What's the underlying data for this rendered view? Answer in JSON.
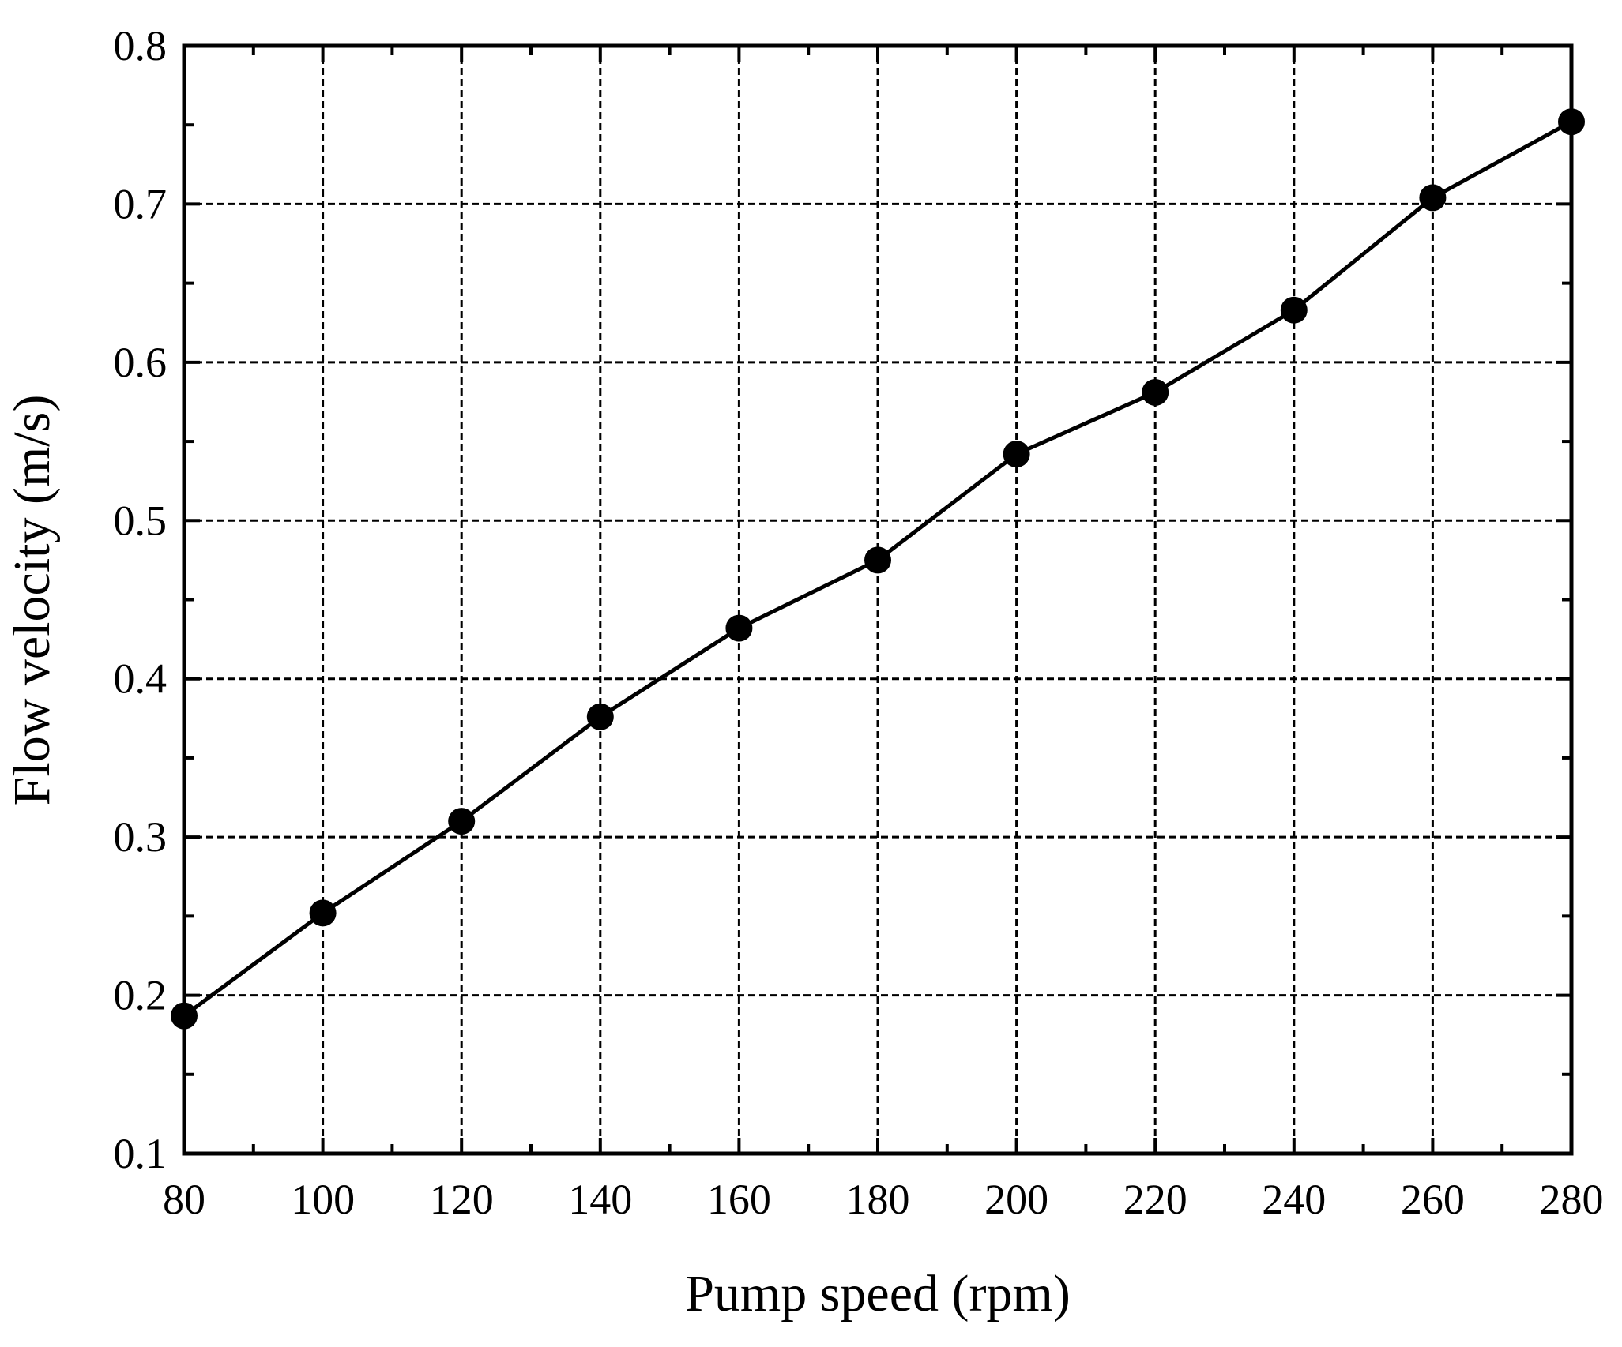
{
  "chart_data": {
    "type": "line",
    "title": "",
    "xlabel": "Pump speed (rpm)",
    "ylabel": "Flow velocity (m/s)",
    "xlim": [
      80,
      280
    ],
    "ylim": [
      0.1,
      0.8
    ],
    "x_ticks": [
      "80",
      "100",
      "120",
      "140",
      "160",
      "180",
      "200",
      "220",
      "240",
      "260",
      "280"
    ],
    "y_ticks": [
      "0.1",
      "0.2",
      "0.3",
      "0.4",
      "0.5",
      "0.6",
      "0.7",
      "0.8"
    ],
    "grid": true,
    "grid_style": "dashed",
    "legend": "none",
    "colors": {
      "line": "#000000",
      "marker": "#000000",
      "grid": "#000000",
      "background": "#ffffff"
    },
    "series": [
      {
        "x": [
          80,
          100,
          120,
          140,
          160,
          180,
          200,
          220,
          240,
          260,
          280
        ],
        "y": [
          0.187,
          0.252,
          0.31,
          0.376,
          0.432,
          0.475,
          0.542,
          0.581,
          0.633,
          0.704,
          0.752
        ]
      }
    ]
  }
}
